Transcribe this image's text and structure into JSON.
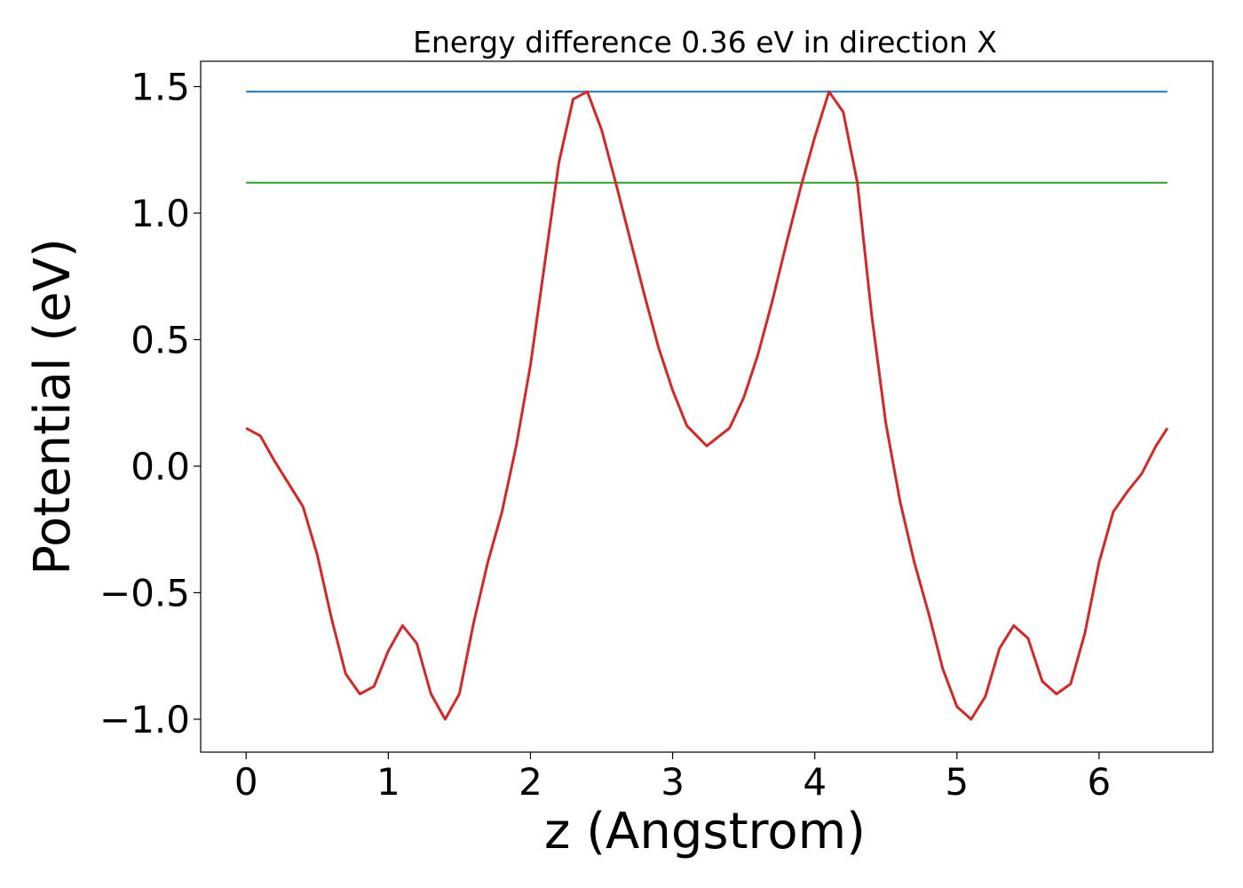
{
  "chart_data": {
    "type": "line",
    "title": "Energy difference 0.36 eV in direction X",
    "xlabel": "z (Angstrom)",
    "ylabel": "Potential (eV)",
    "xlim": [
      -0.32,
      6.8
    ],
    "ylim": [
      -1.13,
      1.6
    ],
    "xticks": [
      0,
      1,
      2,
      3,
      4,
      5,
      6
    ],
    "xtick_labels": [
      "0",
      "1",
      "2",
      "3",
      "4",
      "5",
      "6"
    ],
    "yticks": [
      -1.0,
      -0.5,
      0.0,
      0.5,
      1.0,
      1.5
    ],
    "ytick_labels": [
      "−1.0",
      "−0.5",
      "0.0",
      "0.5",
      "1.0",
      "1.5"
    ],
    "grid": false,
    "series": [
      {
        "color": "#1f77b4",
        "x": [
          0,
          6.48
        ],
        "y": [
          1.48,
          1.48
        ]
      },
      {
        "color": "#2ca02c",
        "x": [
          0,
          6.48
        ],
        "y": [
          1.12,
          1.12
        ]
      },
      {
        "color": "#d62728",
        "x": [
          0.0,
          0.1,
          0.2,
          0.3,
          0.4,
          0.5,
          0.6,
          0.7,
          0.8,
          0.9,
          1.0,
          1.1,
          1.2,
          1.3,
          1.4,
          1.5,
          1.6,
          1.7,
          1.8,
          1.9,
          2.0,
          2.1,
          2.2,
          2.3,
          2.4,
          2.5,
          2.6,
          2.7,
          2.8,
          2.9,
          3.0,
          3.1,
          3.24,
          3.4,
          3.5,
          3.6,
          3.7,
          3.8,
          3.9,
          4.0,
          4.1,
          4.2,
          4.3,
          4.4,
          4.5,
          4.6,
          4.7,
          4.8,
          4.9,
          5.0,
          5.1,
          5.2,
          5.3,
          5.4,
          5.5,
          5.6,
          5.7,
          5.8,
          5.9,
          6.0,
          6.1,
          6.2,
          6.3,
          6.4,
          6.48
        ],
        "y": [
          0.15,
          0.12,
          0.02,
          -0.07,
          -0.16,
          -0.35,
          -0.6,
          -0.82,
          -0.9,
          -0.87,
          -0.73,
          -0.63,
          -0.7,
          -0.9,
          -1.0,
          -0.9,
          -0.62,
          -0.38,
          -0.18,
          0.08,
          0.4,
          0.8,
          1.2,
          1.45,
          1.48,
          1.33,
          1.12,
          0.9,
          0.68,
          0.47,
          0.3,
          0.16,
          0.08,
          0.15,
          0.27,
          0.44,
          0.65,
          0.88,
          1.1,
          1.3,
          1.48,
          1.4,
          1.12,
          0.6,
          0.17,
          -0.14,
          -0.38,
          -0.58,
          -0.8,
          -0.95,
          -1.0,
          -0.91,
          -0.72,
          -0.63,
          -0.68,
          -0.85,
          -0.9,
          -0.86,
          -0.66,
          -0.38,
          -0.18,
          -0.1,
          -0.03,
          0.08,
          0.15
        ]
      }
    ]
  }
}
